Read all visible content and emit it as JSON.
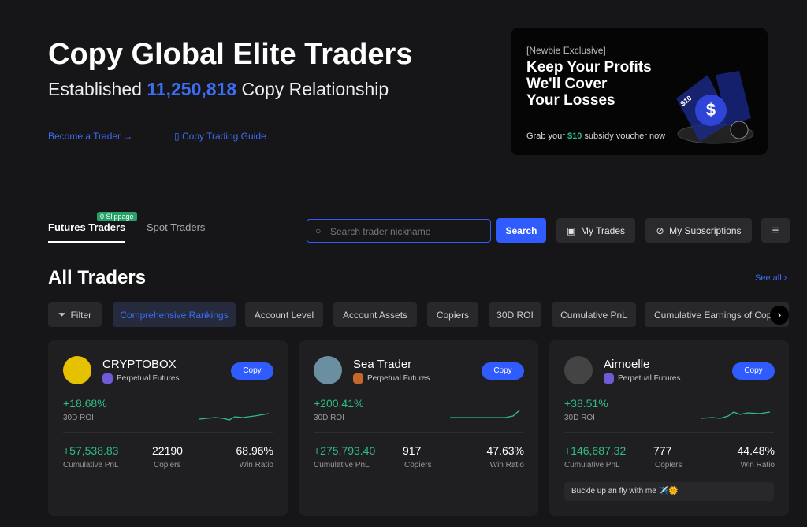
{
  "header": {
    "title": "Copy Global Elite Traders",
    "subtitle_prefix": "Established",
    "subtitle_number": "11,250,818",
    "subtitle_suffix": "Copy Relationship",
    "links": [
      "Become a Trader",
      "Copy Trading Guide"
    ]
  },
  "banner": {
    "tag": "[Newbie Exclusive]",
    "headline": [
      "Keep Your Profits",
      "We'll Cover",
      "Your Losses"
    ],
    "footer_prefix": "Grab your",
    "footer_amount": "$10",
    "footer_suffix": "subsidy voucher now",
    "coin_label": "$10"
  },
  "tabs": [
    {
      "label": "Futures Traders",
      "badge": "0 Slippage"
    },
    {
      "label": "Spot Traders"
    }
  ],
  "search": {
    "placeholder": "Search trader nickname",
    "button": "Search"
  },
  "actions": [
    "My Trades",
    "My Subscriptions"
  ],
  "section": {
    "title": "All Traders",
    "see_all": "See all"
  },
  "filters": [
    "Filter",
    "Comprehensive Rankings",
    "Account Level",
    "Account Assets",
    "Copiers",
    "30D ROI",
    "Cumulative PnL",
    "Cumulative Earnings of Copiers"
  ],
  "traders": [
    {
      "name": "CRYPTOBOX",
      "badge": "Perpetual Futures",
      "button": "Copy",
      "roi": "+18.68%",
      "roi_label": "30D ROI",
      "pnl": "+57,538.83",
      "pnl_label": "Cumulative PnL",
      "copiers": "22190",
      "copiers_label": "Copiers",
      "win_ratio": "68.96%",
      "win_ratio_label": "Win Ratio"
    },
    {
      "name": "Sea Trader",
      "badge": "Perpetual Futures",
      "button": "Copy",
      "roi": "+200.41%",
      "roi_label": "30D ROI",
      "pnl": "+275,793.40",
      "pnl_label": "Cumulative PnL",
      "copiers": "917",
      "copiers_label": "Copiers",
      "win_ratio": "47.63%",
      "win_ratio_label": "Win Ratio"
    },
    {
      "name": "Airnoelle",
      "badge": "Perpetual Futures",
      "button": "Copy",
      "roi": "+38.51%",
      "roi_label": "30D ROI",
      "pnl": "+146,687.32",
      "pnl_label": "Cumulative PnL",
      "copiers": "777",
      "copiers_label": "Copiers",
      "win_ratio": "44.48%",
      "win_ratio_label": "Win Ratio",
      "note": "Buckle up an fly with me ✈️🌞"
    }
  ]
}
